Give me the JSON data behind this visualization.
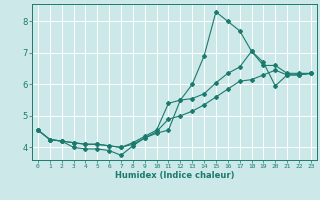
{
  "xlabel": "Humidex (Indice chaleur)",
  "ylabel": "",
  "bg_color": "#cce8e8",
  "grid_color": "#ffffff",
  "line_color": "#1a7a6e",
  "xlim": [
    -0.5,
    23.5
  ],
  "ylim": [
    3.6,
    8.55
  ],
  "xticks": [
    0,
    1,
    2,
    3,
    4,
    5,
    6,
    7,
    8,
    9,
    10,
    11,
    12,
    13,
    14,
    15,
    16,
    17,
    18,
    19,
    20,
    21,
    22,
    23
  ],
  "yticks": [
    4,
    5,
    6,
    7,
    8
  ],
  "line1_x": [
    0,
    1,
    2,
    3,
    4,
    5,
    6,
    7,
    8,
    9,
    10,
    11,
    12,
    13,
    14,
    15,
    16,
    17,
    18,
    19,
    20,
    21,
    22,
    23
  ],
  "line1_y": [
    4.55,
    4.25,
    4.2,
    4.0,
    3.95,
    3.95,
    3.9,
    3.75,
    4.05,
    4.3,
    4.45,
    4.55,
    5.5,
    6.0,
    6.9,
    8.3,
    8.0,
    7.7,
    7.05,
    6.6,
    6.6,
    6.35,
    6.35,
    6.35
  ],
  "line2_x": [
    0,
    1,
    2,
    3,
    4,
    5,
    6,
    7,
    8,
    9,
    10,
    11,
    12,
    13,
    14,
    15,
    16,
    17,
    18,
    19,
    20,
    21,
    22,
    23
  ],
  "line2_y": [
    4.55,
    4.25,
    4.2,
    4.15,
    4.1,
    4.1,
    4.05,
    4.0,
    4.15,
    4.35,
    4.55,
    5.4,
    5.5,
    5.55,
    5.7,
    6.05,
    6.35,
    6.55,
    7.05,
    6.7,
    5.95,
    6.3,
    6.3,
    6.35
  ],
  "line3_x": [
    0,
    1,
    2,
    3,
    4,
    5,
    6,
    7,
    8,
    9,
    10,
    11,
    12,
    13,
    14,
    15,
    16,
    17,
    18,
    19,
    20,
    21,
    22,
    23
  ],
  "line3_y": [
    4.55,
    4.25,
    4.2,
    4.15,
    4.1,
    4.1,
    4.05,
    4.0,
    4.1,
    4.3,
    4.5,
    4.9,
    5.0,
    5.15,
    5.35,
    5.6,
    5.85,
    6.1,
    6.15,
    6.3,
    6.45,
    6.3,
    6.3,
    6.35
  ],
  "xtick_labels": [
    "0",
    "1",
    "2",
    "3",
    "4",
    "5",
    "6",
    "7",
    "8",
    "9",
    "10",
    "11",
    "12",
    "13",
    "14",
    "15",
    "16",
    "17",
    "18",
    "19",
    "20",
    "21",
    "22",
    "23"
  ]
}
